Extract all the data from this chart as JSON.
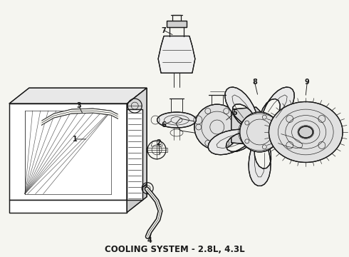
{
  "title": "COOLING SYSTEM - 2.8L, 4.3L",
  "title_fontsize": 8.5,
  "bg_color": "#f5f5f0",
  "line_color": "#1a1a1a",
  "lw_main": 0.9,
  "lw_thin": 0.45,
  "lw_med": 0.65,
  "fig_w": 4.9,
  "fig_h": 3.6
}
